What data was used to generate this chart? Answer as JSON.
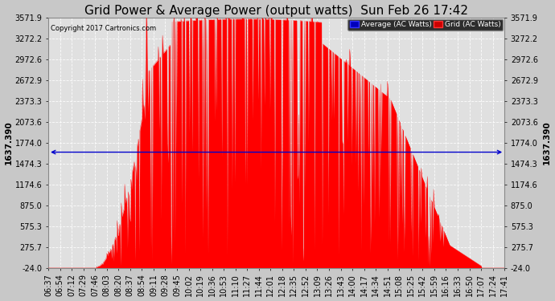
{
  "title": "Grid Power & Average Power (output watts)  Sun Feb 26 17:42",
  "copyright": "Copyright 2017 Cartronics.com",
  "average_value": 1637.39,
  "average_label": "1637.390",
  "yticks": [
    -24.0,
    275.7,
    575.3,
    875.0,
    1174.6,
    1474.3,
    1774.0,
    2073.6,
    2373.3,
    2672.9,
    2972.6,
    3272.2,
    3571.9
  ],
  "ylim": [
    -24.0,
    3571.9
  ],
  "background_color": "#e0e0e0",
  "fill_color": "#ff0000",
  "line_color": "#ff0000",
  "avg_line_color": "#0000cc",
  "legend_avg_bg": "#0000bb",
  "legend_grid_bg": "#cc0000",
  "legend_text": [
    "Average (AC Watts)",
    "Grid (AC Watts)"
  ],
  "xtick_labels": [
    "06:37",
    "06:54",
    "07:12",
    "07:29",
    "07:46",
    "08:03",
    "08:20",
    "08:37",
    "08:54",
    "09:11",
    "09:28",
    "09:45",
    "10:02",
    "10:19",
    "10:36",
    "10:53",
    "11:10",
    "11:27",
    "11:44",
    "12:01",
    "12:18",
    "12:35",
    "12:52",
    "13:09",
    "13:26",
    "13:43",
    "14:00",
    "14:17",
    "14:34",
    "14:51",
    "15:08",
    "15:25",
    "15:42",
    "15:59",
    "16:16",
    "16:33",
    "16:50",
    "17:07",
    "17:24",
    "17:41"
  ],
  "grid_color": "#bbbbbb",
  "title_fontsize": 11,
  "tick_fontsize": 7,
  "right_label_value": "1637.390",
  "fig_width": 6.9,
  "fig_height": 3.75,
  "dpi": 100
}
